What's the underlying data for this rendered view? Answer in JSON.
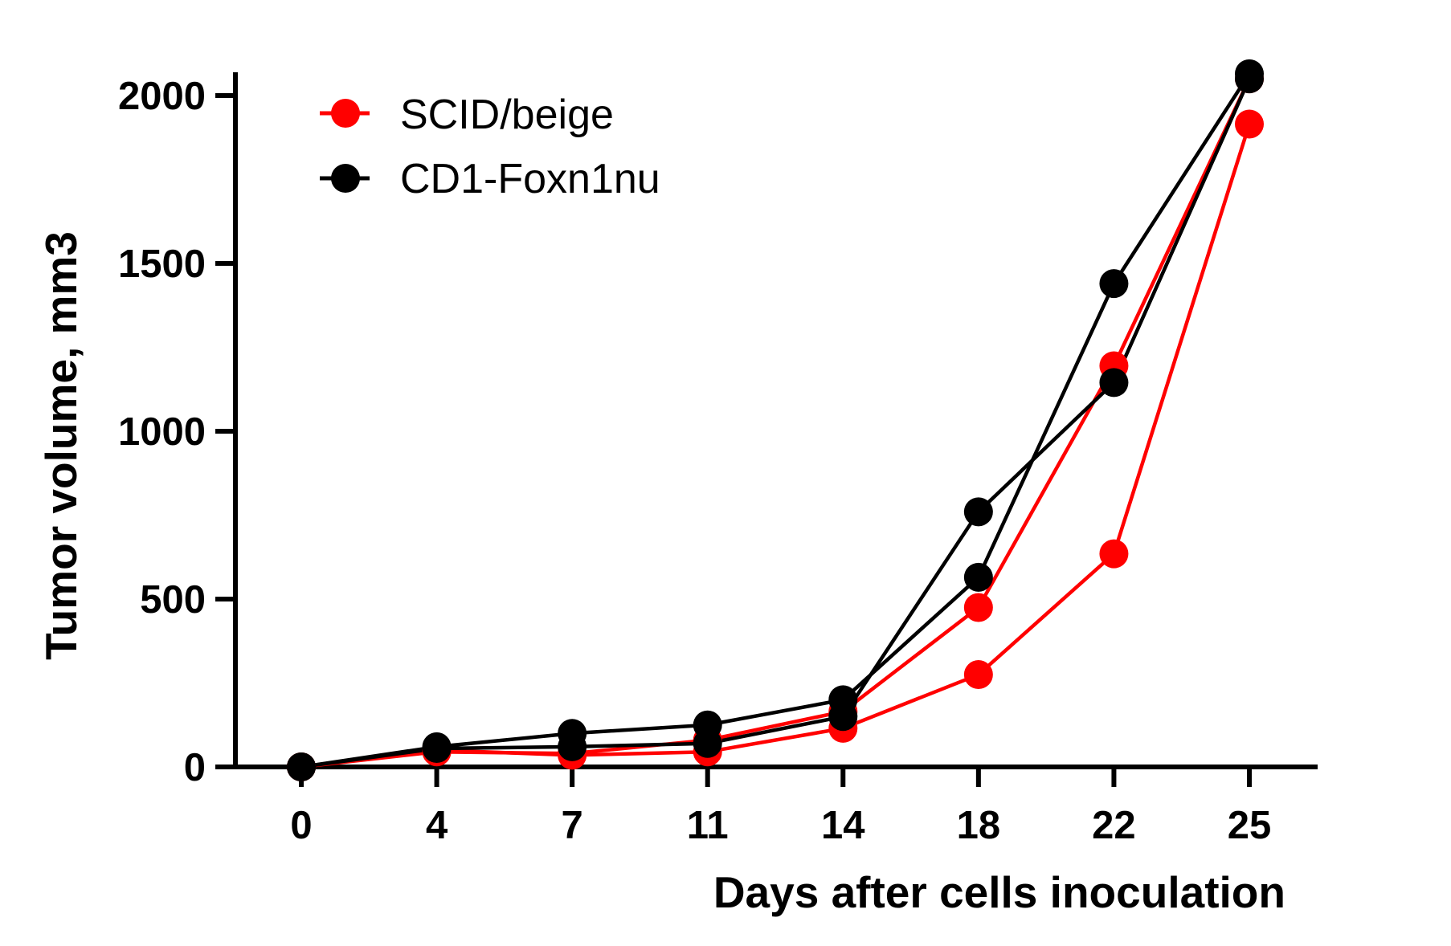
{
  "chart_data": {
    "type": "line",
    "xlabel": "Days after cells inoculation",
    "ylabel": "Tumor volume, mm3",
    "x_ticks": [
      "0",
      "4",
      "7",
      "11",
      "14",
      "18",
      "22",
      "25"
    ],
    "y_ticks": [
      0,
      500,
      1000,
      1500,
      2000
    ],
    "ylim": [
      0,
      2000
    ],
    "grid": false,
    "legend_position": "top-left",
    "groups": [
      {
        "name": "SCID/beige",
        "color": "#ff0000",
        "lines": [
          [
            0,
            45,
            40,
            80,
            165,
            475,
            1195,
            2050
          ],
          [
            0,
            50,
            35,
            45,
            115,
            275,
            635,
            1915
          ]
        ]
      },
      {
        "name": "CD1-Foxn1nu",
        "color": "#000000",
        "lines": [
          [
            0,
            60,
            100,
            125,
            200,
            565,
            1440,
            2065
          ],
          [
            0,
            55,
            60,
            70,
            150,
            760,
            1145,
            2050
          ]
        ]
      }
    ]
  }
}
